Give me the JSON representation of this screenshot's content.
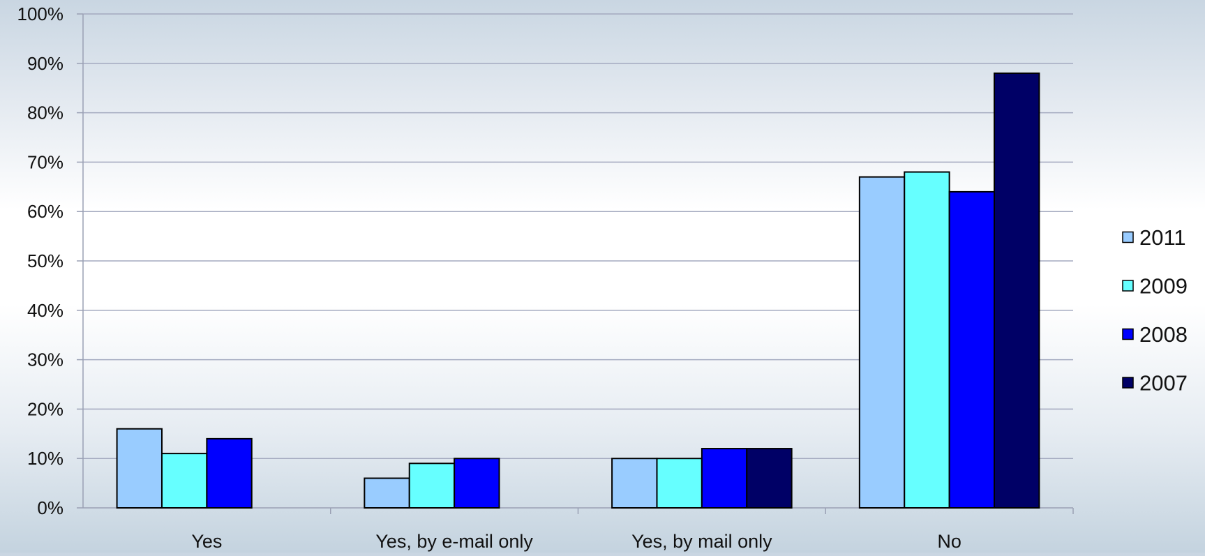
{
  "chart_data": {
    "type": "bar",
    "title": "",
    "xlabel": "",
    "ylabel": "",
    "categories": [
      "Yes",
      "Yes, by e-mail only",
      "Yes, by mail only",
      "No"
    ],
    "ylim": [
      0,
      100
    ],
    "yticks": [
      0,
      10,
      20,
      30,
      40,
      50,
      60,
      70,
      80,
      90,
      100
    ],
    "ytick_labels": [
      "0%",
      "10%",
      "20%",
      "30%",
      "40%",
      "50%",
      "60%",
      "70%",
      "80%",
      "90%",
      "100%"
    ],
    "grid": true,
    "legend": "right",
    "series": [
      {
        "name": "2011",
        "color": "#99ccff",
        "values": [
          16,
          6,
          10,
          67
        ]
      },
      {
        "name": "2009",
        "color": "#66ffff",
        "values": [
          11,
          9,
          10,
          68
        ]
      },
      {
        "name": "2008",
        "color": "#0000ff",
        "values": [
          14,
          10,
          12,
          64
        ]
      },
      {
        "name": "2007",
        "color": "#000066",
        "values": [
          null,
          null,
          12,
          88
        ]
      }
    ]
  }
}
